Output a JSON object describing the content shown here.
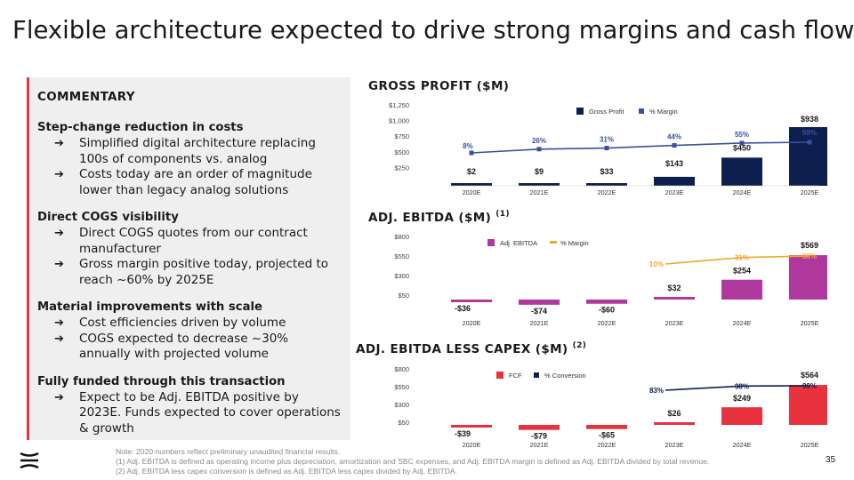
{
  "title": "Flexible architecture expected to drive strong margins and cash flow",
  "commentary": {
    "title": "COMMENTARY",
    "arrow_glyph": "➔",
    "sections": [
      {
        "head": "Step-change reduction in costs",
        "bullets": [
          "Simplified digital architecture replacing 100s of components vs. analog",
          "Costs today are an order of magnitude lower than legacy analog solutions"
        ]
      },
      {
        "head": "Direct COGS visibility",
        "bullets": [
          "Direct COGS quotes from our contract manufacturer",
          "Gross margin positive today, projected to reach ~60% by 2025E"
        ]
      },
      {
        "head": "Material improvements with scale",
        "bullets": [
          "Cost efficiencies driven by volume",
          "COGS expected to decrease ~30% annually with projected volume"
        ]
      },
      {
        "head": "Fully funded through this transaction",
        "bullets": [
          "Expect to be Adj. EBITDA positive by 2023E. Funds expected to cover operations & growth"
        ]
      }
    ]
  },
  "colors": {
    "navy": "#0d1f4f",
    "magenta": "#b0389c",
    "red": "#e8323e",
    "line_blue": "#3b50a0",
    "orange": "#f0a830",
    "accent": "#e0364a"
  },
  "chart_data": [
    {
      "type": "bar",
      "title": "GROSS PROFIT ($M)",
      "footnote_ref": "",
      "categories": [
        "2020E",
        "2021E",
        "2022E",
        "2023E",
        "2024E",
        "2025E"
      ],
      "series": [
        {
          "name": "Gross Profit",
          "values": [
            2,
            9,
            33,
            143,
            450,
            938
          ],
          "labels": [
            "$2",
            "$9",
            "$33",
            "$143",
            "$450",
            "$938"
          ]
        },
        {
          "name": "% Margin",
          "values": [
            8,
            26,
            31,
            44,
            55,
            59
          ],
          "labels": [
            "8%",
            "26%",
            "31%",
            "44%",
            "55%",
            "59%"
          ]
        }
      ],
      "yticks": [
        "$1,250",
        "$1,000",
        "$750",
        "$500",
        "$250"
      ],
      "ylim": [
        0,
        1250
      ],
      "bar_color": "#0d1f4f",
      "line_color": "#3b50a0",
      "line_label_color": "#3b50a0"
    },
    {
      "type": "bar",
      "title": "ADJ. EBITDA ($M)",
      "footnote_ref": "(1)",
      "categories": [
        "2020E",
        "2021E",
        "2022E",
        "2023E",
        "2024E",
        "2025E"
      ],
      "series": [
        {
          "name": "Adj. EBITDA",
          "values": [
            -36,
            -74,
            -60,
            32,
            254,
            569
          ],
          "labels": [
            "-$36",
            "-$74",
            "-$60",
            "$32",
            "$254",
            "$569"
          ]
        },
        {
          "name": "% Margin",
          "values": [
            null,
            null,
            null,
            10,
            31,
            36
          ],
          "labels": [
            "",
            "",
            "",
            "10%",
            "31%",
            "36%"
          ]
        }
      ],
      "yticks": [
        "$800",
        "$550",
        "$300",
        "$50"
      ],
      "ylim": [
        -100,
        800
      ],
      "bar_color": "#b0389c",
      "line_color": "#f0a830",
      "line_label_color": "#f0a830"
    },
    {
      "type": "bar",
      "title": "ADJ. EBITDA LESS CAPEX ($M)",
      "footnote_ref": "(2)",
      "categories": [
        "2020E",
        "2021E",
        "2022E",
        "2023E",
        "2024E",
        "2025E"
      ],
      "series": [
        {
          "name": "FCF",
          "values": [
            -39,
            -79,
            -65,
            26,
            249,
            564
          ],
          "labels": [
            "-$39",
            "-$79",
            "-$65",
            "$26",
            "$249",
            "$564"
          ]
        },
        {
          "name": "% Conversion",
          "values": [
            null,
            null,
            null,
            83,
            98,
            99
          ],
          "labels": [
            "",
            "",
            "",
            "83%",
            "98%",
            "99%"
          ]
        }
      ],
      "yticks": [
        "$800",
        "$550",
        "$300",
        "$50"
      ],
      "ylim": [
        -100,
        800
      ],
      "bar_color": "#e8323e",
      "line_color": "#0d1f4f",
      "line_label_color": "#0d1f4f"
    }
  ],
  "footnotes": [
    "Note: 2020 numbers reflect preliminary unaudited financial results.",
    "(1) Adj. EBITDA is defined as operating income plus depreciation, amortization and SBC expenses, and Adj. EBITDA margin is defined as Adj. EBITDA divided by total revenue.",
    "(2) Adj. EBITDA less capex conversion is defined as Adj. EBITDA less capex divided by Adj. EBITDA."
  ],
  "page_number": "35"
}
